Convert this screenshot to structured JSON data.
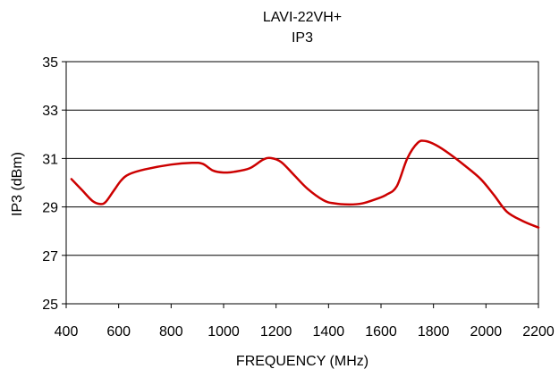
{
  "chart_data": {
    "type": "line",
    "title": "LAVI-22VH+",
    "subtitle": "IP3",
    "xlabel": "FREQUENCY (MHz)",
    "ylabel": "IP3 (dBm)",
    "xlim": [
      400,
      2200
    ],
    "ylim": [
      25,
      35
    ],
    "xticks": [
      400,
      600,
      800,
      1000,
      1200,
      1400,
      1600,
      1800,
      2000,
      2200
    ],
    "yticks": [
      25,
      27,
      29,
      31,
      33,
      35
    ],
    "grid": "horizontal",
    "legend": "none",
    "series": [
      {
        "color": "#cc0000",
        "x": [
          420,
          460,
          500,
          530,
          550,
          580,
          610,
          640,
          700,
          800,
          880,
          920,
          960,
          1000,
          1040,
          1100,
          1150,
          1180,
          1220,
          1270,
          1320,
          1380,
          1420,
          1480,
          1530,
          1580,
          1620,
          1660,
          1700,
          1740,
          1770,
          1810,
          1860,
          1920,
          1980,
          2030,
          2080,
          2140,
          2200
        ],
        "y": [
          30.15,
          29.7,
          29.25,
          29.12,
          29.2,
          29.65,
          30.1,
          30.35,
          30.55,
          30.75,
          30.82,
          30.78,
          30.5,
          30.42,
          30.45,
          30.6,
          30.95,
          31.02,
          30.85,
          30.3,
          29.75,
          29.28,
          29.15,
          29.1,
          29.15,
          29.32,
          29.5,
          29.85,
          31.0,
          31.65,
          31.72,
          31.55,
          31.2,
          30.7,
          30.15,
          29.5,
          28.8,
          28.42,
          28.15
        ]
      }
    ]
  }
}
